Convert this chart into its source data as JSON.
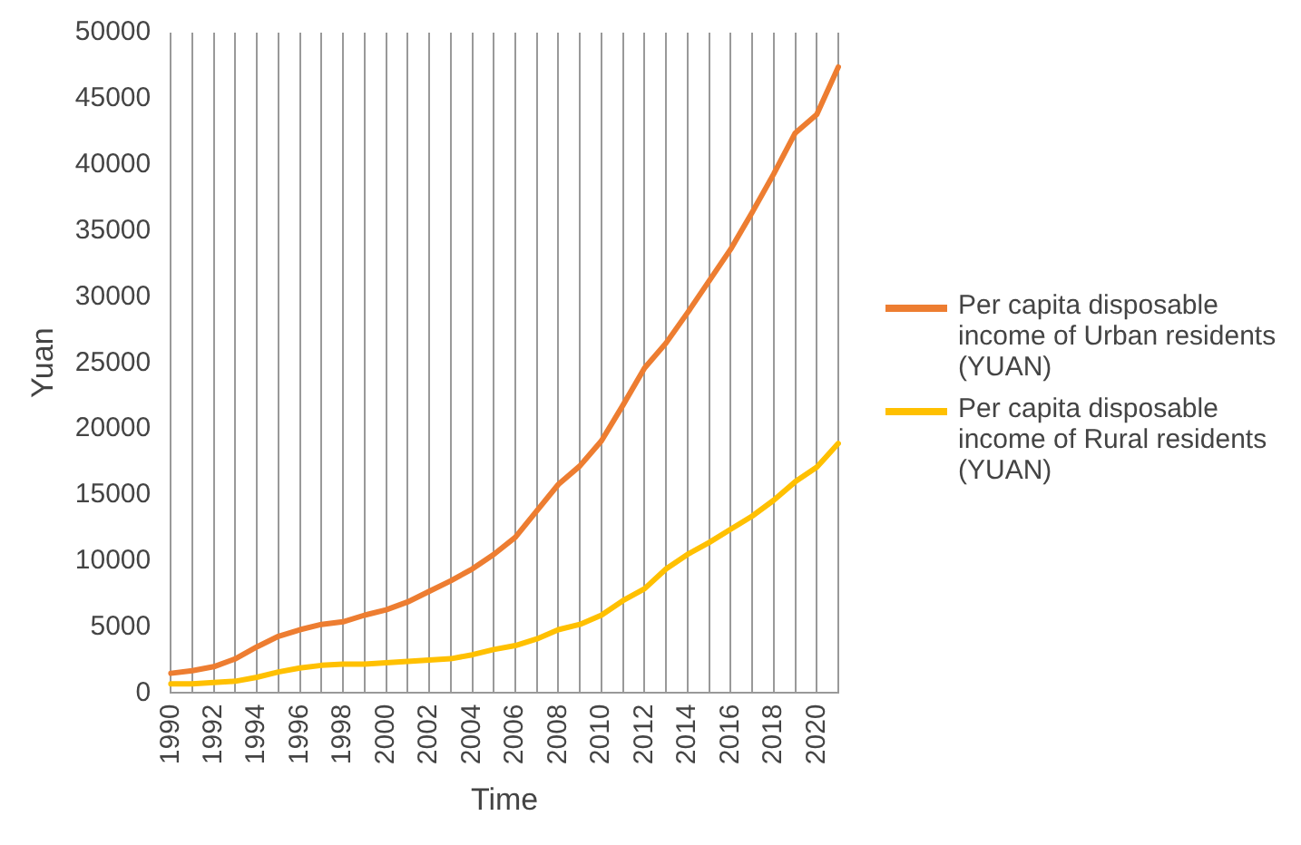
{
  "chart_data": {
    "type": "line",
    "xlabel": "Time",
    "ylabel": "Yuan",
    "categories": [
      "1990",
      null,
      "1992",
      null,
      "1994",
      null,
      "1996",
      null,
      "1998",
      null,
      "2000",
      null,
      "2002",
      null,
      "2004",
      null,
      "2006",
      null,
      "2008",
      null,
      "2010",
      null,
      "2012",
      null,
      "2014",
      null,
      "2016",
      null,
      "2018",
      null,
      "2020",
      null
    ],
    "series": [
      {
        "name": "Per capita disposable income of Urban residents (YUAN)",
        "color": "#ed7d31",
        "values": [
          1500,
          1700,
          2000,
          2600,
          3500,
          4300,
          4800,
          5200,
          5400,
          5900,
          6300,
          6900,
          7700,
          8500,
          9400,
          10500,
          11800,
          13800,
          15800,
          17200,
          19100,
          21800,
          24600,
          26500,
          28800,
          31200,
          33600,
          36400,
          39300,
          42400,
          43800,
          47400
        ]
      },
      {
        "name": "Per capita disposable income of Rural residents (YUAN)",
        "color": "#ffc000",
        "values": [
          700,
          700,
          800,
          900,
          1200,
          1600,
          1900,
          2100,
          2200,
          2200,
          2300,
          2400,
          2500,
          2600,
          2900,
          3300,
          3600,
          4100,
          4800,
          5200,
          5900,
          7000,
          7900,
          9400,
          10500,
          11400,
          12400,
          13400,
          14600,
          16000,
          17100,
          18900
        ]
      }
    ],
    "ylim": [
      0,
      50000
    ],
    "yticks": [
      0,
      5000,
      10000,
      15000,
      20000,
      25000,
      30000,
      35000,
      40000,
      45000,
      50000
    ],
    "grid": "x",
    "legend": "right",
    "marker": "none",
    "line_style": "solid"
  }
}
